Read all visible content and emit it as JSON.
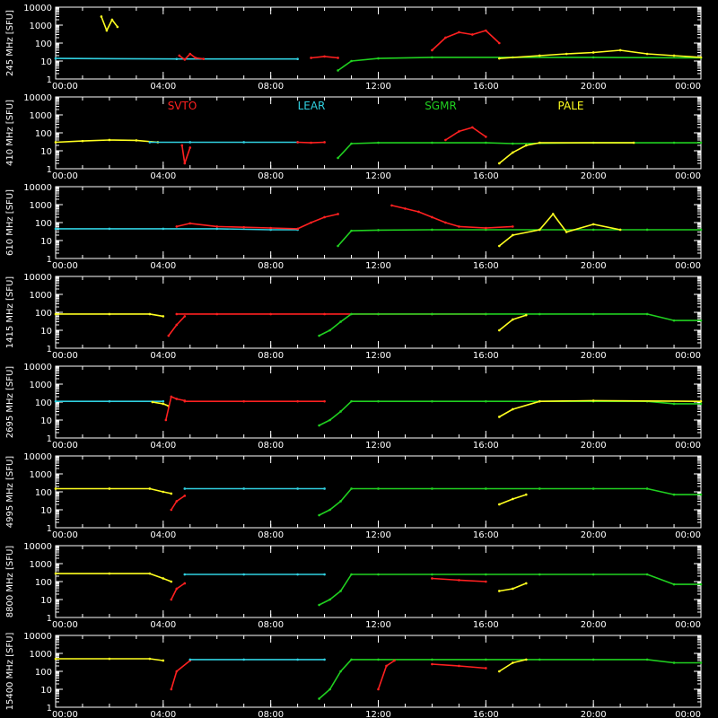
{
  "chart_data": {
    "type": "scatter",
    "x_tick_labels": [
      "00:00",
      "04:00",
      "08:00",
      "12:00",
      "16:00",
      "20:00",
      "00:00"
    ],
    "x_hours": [
      0,
      4,
      8,
      12,
      16,
      20,
      24
    ],
    "y_tick_labels": [
      "10000",
      "1000",
      "100",
      "10",
      "1"
    ],
    "y_scale": "log",
    "ylim": [
      1,
      10000
    ],
    "grid": false,
    "stations": [
      {
        "name": "SVTO",
        "color": "#ff2020"
      },
      {
        "name": "LEAR",
        "color": "#30d0e0"
      },
      {
        "name": "SGMR",
        "color": "#20d020"
      },
      {
        "name": "PALE",
        "color": "#ffff20"
      }
    ],
    "panels": [
      {
        "ylabel": "245 MHz  [SFU]",
        "show_station_labels": false,
        "segments": [
          {
            "station": "LEAR",
            "t": [
              0,
              4.5,
              9.0
            ],
            "v": [
              14,
              13,
              13
            ]
          },
          {
            "station": "PALE",
            "t": [
              1.7,
              1.9,
              2.1,
              2.3
            ],
            "v": [
              3000,
              500,
              2000,
              800
            ]
          },
          {
            "station": "SVTO",
            "t": [
              4.6,
              4.8,
              5.0,
              5.2,
              5.5
            ],
            "v": [
              20,
              12,
              25,
              15,
              13
            ]
          },
          {
            "station": "SVTO",
            "t": [
              9.5,
              10.0,
              10.5
            ],
            "v": [
              15,
              18,
              15
            ]
          },
          {
            "station": "SGMR",
            "t": [
              10.5,
              11.0,
              12.0,
              14.0,
              17.0,
              20.0,
              24.0
            ],
            "v": [
              3,
              10,
              14,
              16,
              16,
              16,
              15
            ]
          },
          {
            "station": "SVTO",
            "t": [
              14.0,
              14.5,
              15.0,
              15.5,
              16.0,
              16.5
            ],
            "v": [
              40,
              200,
              400,
              300,
              500,
              100
            ]
          },
          {
            "station": "PALE",
            "t": [
              16.5,
              18.0,
              19.0,
              20.0,
              21.0,
              22.0,
              23.0,
              24.0
            ],
            "v": [
              14,
              20,
              25,
              30,
              40,
              25,
              20,
              16
            ]
          }
        ]
      },
      {
        "ylabel": "410 MHz  [SFU]",
        "show_station_labels": true,
        "segments": [
          {
            "station": "PALE",
            "t": [
              0,
              1.0,
              2.0,
              3.0,
              3.8
            ],
            "v": [
              30,
              35,
              40,
              38,
              30
            ]
          },
          {
            "station": "LEAR",
            "t": [
              3.5,
              5.0,
              7.0,
              9.0
            ],
            "v": [
              30,
              30,
              30,
              30
            ]
          },
          {
            "station": "SVTO",
            "t": [
              4.7,
              4.8,
              5.0
            ],
            "v": [
              20,
              2,
              15
            ]
          },
          {
            "station": "SVTO",
            "t": [
              9.0,
              9.5,
              10.0
            ],
            "v": [
              30,
              28,
              30
            ]
          },
          {
            "station": "SGMR",
            "t": [
              10.5,
              11.0,
              12.0,
              14.0,
              16.0,
              17.0,
              20.0,
              23.0,
              24.0
            ],
            "v": [
              4,
              25,
              28,
              28,
              28,
              25,
              28,
              28,
              28
            ]
          },
          {
            "station": "SVTO",
            "t": [
              14.5,
              15.0,
              15.5,
              16.0
            ],
            "v": [
              40,
              120,
              200,
              60
            ]
          },
          {
            "station": "PALE",
            "t": [
              16.5,
              17.0,
              17.5,
              18.0,
              21.5
            ],
            "v": [
              2,
              8,
              20,
              28,
              28
            ]
          }
        ]
      },
      {
        "ylabel": "610 MHz  [SFU]",
        "show_station_labels": false,
        "segments": [
          {
            "station": "LEAR",
            "t": [
              0,
              2.0,
              4.0,
              6.0,
              8.0,
              9.0
            ],
            "v": [
              45,
              45,
              45,
              45,
              40,
              40
            ]
          },
          {
            "station": "SVTO",
            "t": [
              4.5,
              5.0,
              6.0,
              7.0,
              8.0,
              9.0,
              9.5,
              10.0,
              10.5
            ],
            "v": [
              60,
              90,
              60,
              55,
              50,
              45,
              100,
              200,
              300
            ]
          },
          {
            "station": "SGMR",
            "t": [
              10.5,
              11.0,
              12.0,
              14.0,
              16.0,
              18.0,
              20.0,
              22.0,
              24.0
            ],
            "v": [
              5,
              35,
              38,
              40,
              40,
              40,
              40,
              40,
              40
            ]
          },
          {
            "station": "SVTO",
            "t": [
              12.5,
              13.0,
              13.5,
              14.0,
              14.5,
              15.0,
              16.0,
              17.0
            ],
            "v": [
              900,
              600,
              400,
              200,
              100,
              60,
              50,
              60
            ]
          },
          {
            "station": "PALE",
            "t": [
              16.5,
              17.0,
              18.0,
              18.5,
              19.0,
              20.0,
              21.0
            ],
            "v": [
              5,
              20,
              40,
              300,
              30,
              80,
              40
            ]
          }
        ]
      },
      {
        "ylabel": "1415 MHz  [SFU]",
        "show_station_labels": false,
        "segments": [
          {
            "station": "PALE",
            "t": [
              0,
              2.0,
              3.5,
              4.0
            ],
            "v": [
              80,
              80,
              80,
              60
            ]
          },
          {
            "station": "SVTO",
            "t": [
              4.2,
              4.5,
              4.8
            ],
            "v": [
              5,
              20,
              60
            ]
          },
          {
            "station": "SVTO",
            "t": [
              4.5,
              6.0,
              8.0,
              10.0,
              12.0,
              14.0,
              16.0
            ],
            "v": [
              80,
              80,
              80,
              80,
              80,
              80,
              80
            ]
          },
          {
            "station": "SGMR",
            "t": [
              9.8,
              10.2,
              10.6,
              11.0,
              12.0,
              14.0,
              16.0,
              18.0,
              20.0,
              22.0,
              23.0,
              24.0
            ],
            "v": [
              5,
              10,
              30,
              80,
              80,
              80,
              80,
              80,
              80,
              80,
              35,
              35
            ]
          },
          {
            "station": "PALE",
            "t": [
              16.5,
              17.0,
              17.5
            ],
            "v": [
              10,
              40,
              70
            ]
          }
        ]
      },
      {
        "ylabel": "2695 MHz  [SFU]",
        "show_station_labels": false,
        "segments": [
          {
            "station": "LEAR",
            "t": [
              0,
              2.0,
              4.0
            ],
            "v": [
              110,
              110,
              110
            ]
          },
          {
            "station": "PALE",
            "t": [
              3.6,
              4.0,
              4.2
            ],
            "v": [
              100,
              80,
              60
            ]
          },
          {
            "station": "SVTO",
            "t": [
              4.1,
              4.3,
              4.5,
              4.8
            ],
            "v": [
              10,
              200,
              150,
              120
            ]
          },
          {
            "station": "SVTO",
            "t": [
              4.8,
              7.0,
              9.0,
              10.0
            ],
            "v": [
              110,
              110,
              110,
              110
            ]
          },
          {
            "station": "SGMR",
            "t": [
              9.8,
              10.2,
              10.6,
              11.0,
              12.0,
              14.0,
              16.0,
              18.0,
              20.0,
              22.0,
              23.0,
              24.0
            ],
            "v": [
              5,
              10,
              30,
              110,
              110,
              110,
              110,
              110,
              110,
              110,
              80,
              80
            ]
          },
          {
            "station": "PALE",
            "t": [
              16.5,
              17.0,
              18.0,
              20.0,
              24.0
            ],
            "v": [
              15,
              40,
              110,
              120,
              110
            ]
          }
        ]
      },
      {
        "ylabel": "4995 MHz  [SFU]",
        "show_station_labels": false,
        "segments": [
          {
            "station": "PALE",
            "t": [
              0,
              2.0,
              3.5,
              4.0,
              4.3
            ],
            "v": [
              150,
              150,
              150,
              100,
              80
            ]
          },
          {
            "station": "SVTO",
            "t": [
              4.3,
              4.5,
              4.8
            ],
            "v": [
              10,
              30,
              60
            ]
          },
          {
            "station": "LEAR",
            "t": [
              4.8,
              7.0,
              9.0,
              10.0
            ],
            "v": [
              150,
              150,
              150,
              150
            ]
          },
          {
            "station": "SGMR",
            "t": [
              9.8,
              10.2,
              10.6,
              11.0,
              12.0,
              14.0,
              16.0,
              18.0,
              20.0,
              22.0,
              23.0,
              24.0
            ],
            "v": [
              5,
              10,
              30,
              150,
              150,
              150,
              150,
              150,
              150,
              150,
              70,
              70
            ]
          },
          {
            "station": "PALE",
            "t": [
              16.5,
              17.0,
              17.5
            ],
            "v": [
              20,
              40,
              70
            ]
          }
        ]
      },
      {
        "ylabel": "8800 MHz  [SFU]",
        "show_station_labels": false,
        "segments": [
          {
            "station": "PALE",
            "t": [
              0,
              2.0,
              3.5,
              4.0,
              4.3
            ],
            "v": [
              280,
              280,
              280,
              150,
              100
            ]
          },
          {
            "station": "SVTO",
            "t": [
              4.3,
              4.5,
              4.8
            ],
            "v": [
              10,
              40,
              80
            ]
          },
          {
            "station": "LEAR",
            "t": [
              4.8,
              7.0,
              9.0,
              10.0
            ],
            "v": [
              250,
              250,
              250,
              250
            ]
          },
          {
            "station": "SGMR",
            "t": [
              9.8,
              10.2,
              10.6,
              11.0,
              12.0,
              14.0,
              16.0,
              18.0,
              20.0,
              22.0,
              23.0,
              24.0
            ],
            "v": [
              5,
              10,
              30,
              250,
              250,
              250,
              250,
              250,
              250,
              250,
              70,
              70
            ]
          },
          {
            "station": "SVTO",
            "t": [
              14.0,
              15.0,
              16.0
            ],
            "v": [
              150,
              120,
              100
            ]
          },
          {
            "station": "PALE",
            "t": [
              16.5,
              17.0,
              17.5
            ],
            "v": [
              30,
              40,
              80
            ]
          }
        ]
      },
      {
        "ylabel": "15400 MHz  [SFU]",
        "show_station_labels": false,
        "segments": [
          {
            "station": "PALE",
            "t": [
              0,
              2.0,
              3.5,
              4.0
            ],
            "v": [
              500,
              500,
              500,
              400
            ]
          },
          {
            "station": "SVTO",
            "t": [
              4.3,
              4.5,
              5.0
            ],
            "v": [
              10,
              100,
              400
            ]
          },
          {
            "station": "LEAR",
            "t": [
              5.0,
              7.0,
              9.0,
              10.0
            ],
            "v": [
              450,
              450,
              450,
              450
            ]
          },
          {
            "station": "SGMR",
            "t": [
              9.8,
              10.2,
              10.6,
              11.0,
              12.0,
              14.0,
              16.0,
              18.0,
              20.0,
              22.0,
              23.0,
              24.0
            ],
            "v": [
              3,
              10,
              100,
              450,
              450,
              450,
              450,
              450,
              450,
              450,
              300,
              300
            ]
          },
          {
            "station": "SVTO",
            "t": [
              12.0,
              12.3,
              12.6
            ],
            "v": [
              10,
              200,
              400
            ]
          },
          {
            "station": "SVTO",
            "t": [
              14.0,
              15.0,
              16.0
            ],
            "v": [
              250,
              200,
              150
            ]
          },
          {
            "station": "PALE",
            "t": [
              16.5,
              17.0,
              17.5
            ],
            "v": [
              100,
              300,
              450
            ]
          }
        ]
      }
    ]
  }
}
